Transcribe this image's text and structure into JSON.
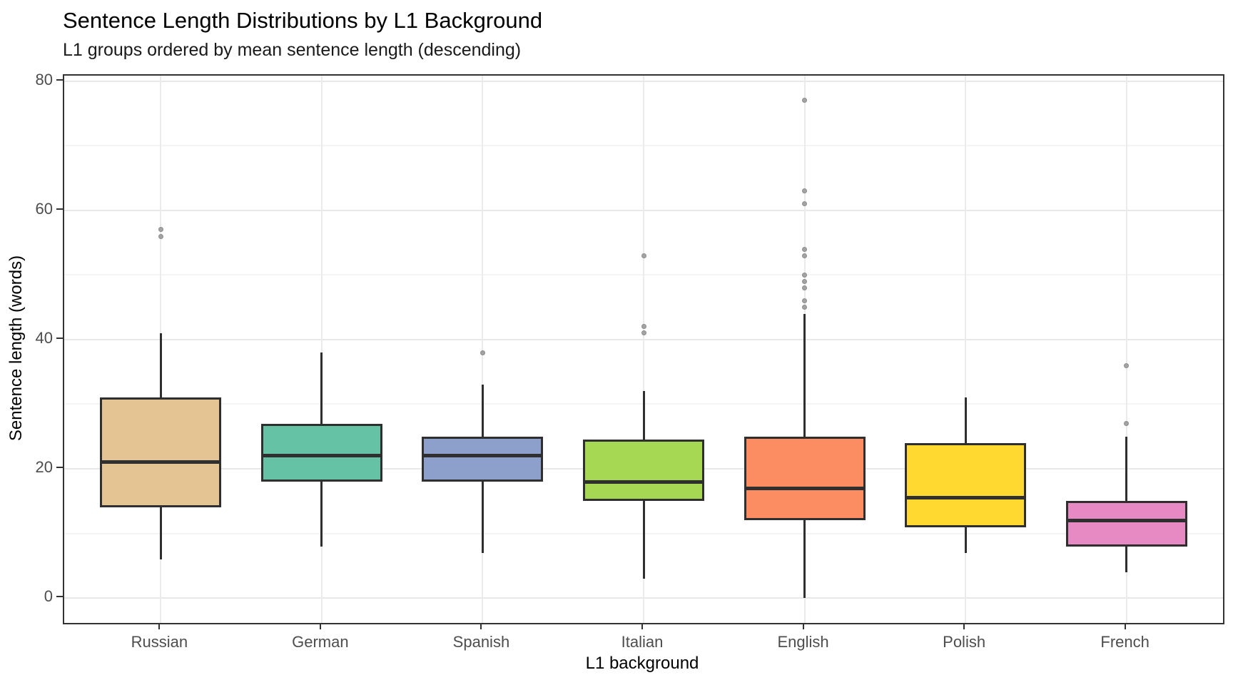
{
  "title": "Sentence Length Distributions by L1 Background",
  "subtitle": "L1 groups ordered by mean sentence length (descending)",
  "chart_data": {
    "type": "boxplot",
    "title": "Sentence Length Distributions by L1 Background",
    "subtitle": "L1 groups ordered by mean sentence length (descending)",
    "xlabel": "L1 background",
    "ylabel": "Sentence length (words)",
    "ylim": [
      -3.85,
      80.85
    ],
    "yticks": [
      0,
      20,
      40,
      60,
      80
    ],
    "yticks_minor": [
      10,
      30,
      50,
      70
    ],
    "categories": [
      "Russian",
      "German",
      "Spanish",
      "Italian",
      "English",
      "Polish",
      "French"
    ],
    "grid": "horizontal major+minor, vertical major at category centers",
    "legend": "none",
    "panel_bg": "#FFFFFF",
    "groups": [
      {
        "label": "Russian",
        "color": "#E5C494",
        "whisker_low": 6,
        "q1": 14,
        "median": 21,
        "q3": 31,
        "whisker_high": 41,
        "outliers": [
          56,
          57
        ]
      },
      {
        "label": "German",
        "color": "#66C2A5",
        "whisker_low": 8,
        "q1": 18,
        "median": 22,
        "q3": 27,
        "whisker_high": 38,
        "outliers": []
      },
      {
        "label": "Spanish",
        "color": "#8DA0CB",
        "whisker_low": 7,
        "q1": 18,
        "median": 22,
        "q3": 25,
        "whisker_high": 33,
        "outliers": [
          38
        ]
      },
      {
        "label": "Italian",
        "color": "#A6D854",
        "whisker_low": 3,
        "q1": 15,
        "median": 18,
        "q3": 24.5,
        "whisker_high": 32,
        "outliers": [
          41,
          42,
          53
        ]
      },
      {
        "label": "English",
        "color": "#FC8D62",
        "whisker_low": 0,
        "q1": 12,
        "median": 17,
        "q3": 25,
        "whisker_high": 44,
        "outliers": [
          45,
          46,
          48,
          49,
          50,
          53,
          54,
          61,
          63,
          77
        ]
      },
      {
        "label": "Polish",
        "color": "#FFD92F",
        "whisker_low": 7,
        "q1": 11,
        "median": 15.5,
        "q3": 24,
        "whisker_high": 31,
        "outliers": []
      },
      {
        "label": "French",
        "color": "#E78AC3",
        "whisker_low": 4,
        "q1": 8,
        "median": 12,
        "q3": 15,
        "whisker_high": 25,
        "outliers": [
          27,
          36
        ]
      }
    ],
    "style": {
      "box_border": "#2F2F2F",
      "median_color": "#2F2F2F",
      "whisker_color": "#2F2F2F",
      "outlier_fill": "#A3A3A3",
      "outlier_stroke": "#8C8C8C",
      "grid_major": "#E8E8E8",
      "grid_minor": "#F4F4F4",
      "panel_border": "#333333",
      "axis_text": "#4D4D4D"
    }
  }
}
